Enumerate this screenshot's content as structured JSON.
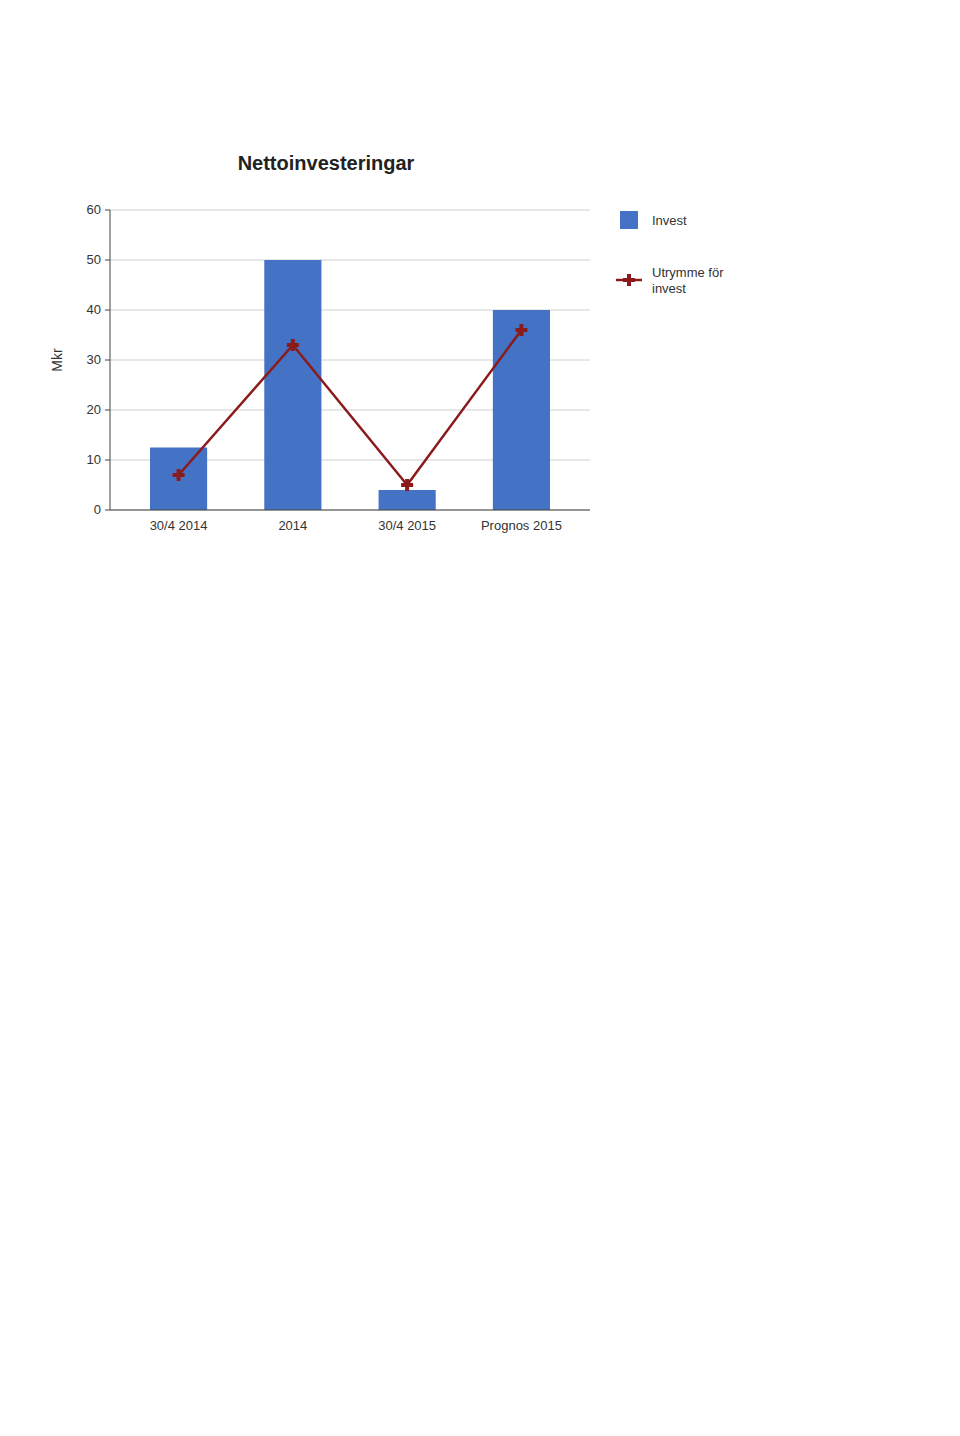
{
  "chart_data": {
    "type": "bar",
    "title": "Nettoinvesteringar",
    "ylabel": "Mkr",
    "categories": [
      "30/4 2014",
      "2014",
      "30/4 2015",
      "Prognos 2015"
    ],
    "series": [
      {
        "name": "Invest",
        "type": "bar",
        "color": "#4472C4",
        "values": [
          12.5,
          50,
          4,
          40
        ]
      },
      {
        "name": "Utrymme för\ninvest",
        "type": "line",
        "color": "#8B1A1A",
        "marker": "plus",
        "values": [
          7,
          33,
          5,
          36
        ]
      }
    ],
    "ylim": [
      0,
      60
    ],
    "yticks": [
      0,
      10,
      20,
      30,
      40,
      50,
      60
    ],
    "grid": true,
    "legend": "right"
  }
}
